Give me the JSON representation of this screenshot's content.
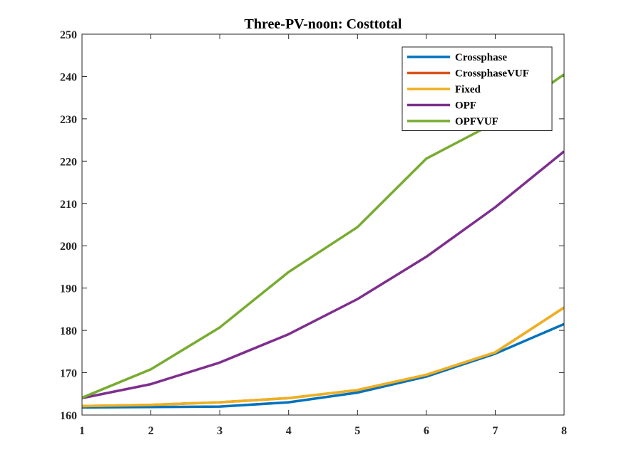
{
  "chart_data": {
    "type": "line",
    "title": "Three-PV-noon: Costtotal",
    "xlabel": "",
    "ylabel": "",
    "xlim": [
      1,
      8
    ],
    "ylim": [
      160,
      250
    ],
    "x": [
      1,
      2,
      3,
      4,
      5,
      6,
      7,
      8
    ],
    "xticks": [
      "1",
      "2",
      "3",
      "4",
      "5",
      "6",
      "7",
      "8"
    ],
    "yticks": [
      "160",
      "170",
      "180",
      "190",
      "200",
      "210",
      "220",
      "230",
      "240",
      "250"
    ],
    "grid": false,
    "legend_position": "top-right",
    "series": [
      {
        "name": "Crossphase",
        "color": "#0072BD",
        "values": [
          161.8,
          161.9,
          162.0,
          163.0,
          165.3,
          169.1,
          174.5,
          181.5
        ]
      },
      {
        "name": "CrossphaseVUF",
        "color": "#D95319",
        "values": [
          162.1,
          162.4,
          163.0,
          164.0,
          165.9,
          169.5,
          174.8,
          185.4
        ]
      },
      {
        "name": "Fixed",
        "color": "#EDB120",
        "values": [
          162.1,
          162.4,
          163.0,
          164.0,
          165.9,
          169.5,
          174.8,
          185.4
        ]
      },
      {
        "name": "OPF",
        "color": "#7E2F8E",
        "values": [
          164.0,
          167.3,
          172.4,
          179.1,
          187.4,
          197.4,
          209.1,
          222.3
        ]
      },
      {
        "name": "OPFVUF",
        "color": "#77AC30",
        "values": [
          164.1,
          170.8,
          180.7,
          193.8,
          204.4,
          220.6,
          229.1,
          240.5
        ]
      }
    ]
  }
}
